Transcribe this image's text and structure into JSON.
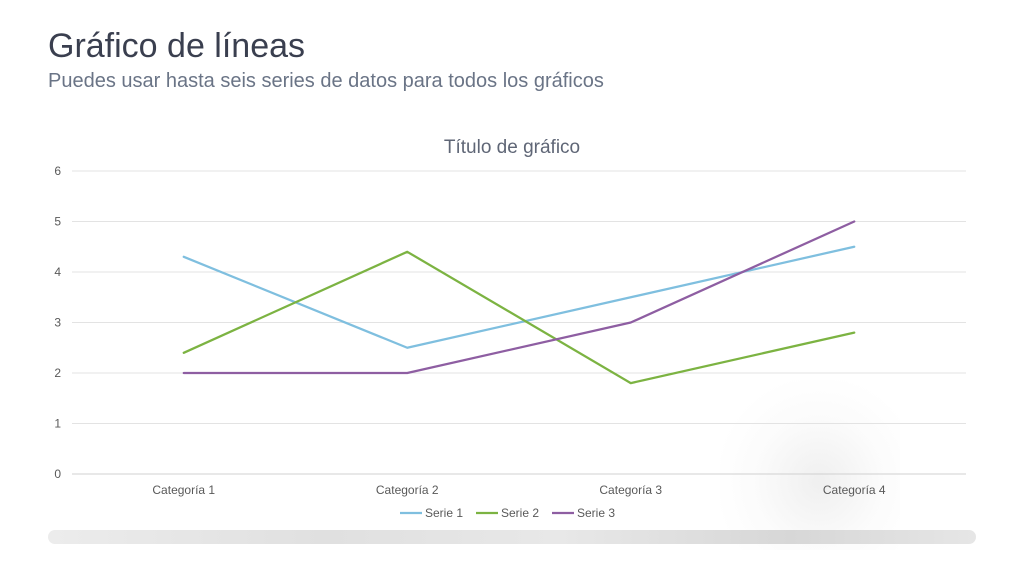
{
  "slide": {
    "title": "Gráfico de líneas",
    "subtitle": "Puedes usar hasta seis series de datos para todos los gráficos"
  },
  "chart_data": {
    "type": "line",
    "title": "Título de gráfico",
    "xlabel": "",
    "ylabel": "",
    "categories": [
      "Categoría 1",
      "Categoría 2",
      "Categoría 3",
      "Categoría 4"
    ],
    "ylim": [
      0,
      6
    ],
    "yticks": [
      0,
      1,
      2,
      3,
      4,
      5,
      6
    ],
    "grid": true,
    "legend_position": "bottom",
    "series": [
      {
        "name": "Serie 1",
        "values": [
          4.3,
          2.5,
          3.5,
          4.5
        ],
        "color": "#7fbfdf"
      },
      {
        "name": "Serie 2",
        "values": [
          2.4,
          4.4,
          1.8,
          2.8
        ],
        "color": "#7cb342"
      },
      {
        "name": "Serie 3",
        "values": [
          2,
          2,
          3,
          5
        ],
        "color": "#8e5ea2"
      }
    ]
  }
}
